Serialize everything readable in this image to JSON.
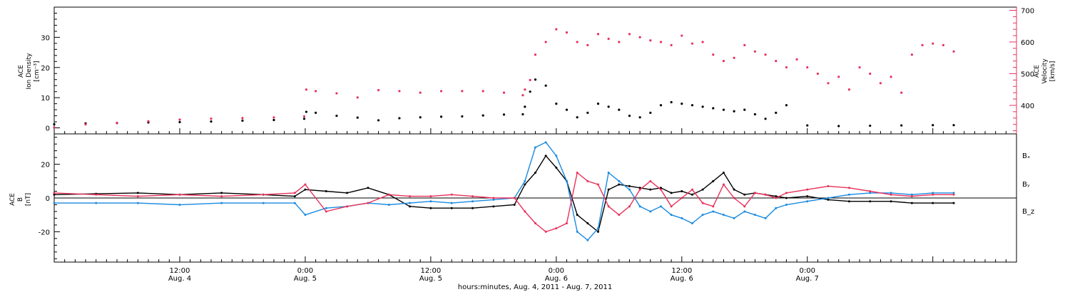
{
  "chart_data": [
    {
      "panel": "top",
      "type": "scatter",
      "ylabel_lines": [
        "ACE",
        "Ion Density",
        "[cm⁻³]"
      ],
      "y2label_lines": [
        "ACE",
        "Velocity",
        "[km/s]"
      ],
      "yticks": [
        "0",
        "10",
        "20",
        "30"
      ],
      "y2ticks": [
        "400",
        "500",
        "600",
        "700"
      ],
      "ylim": [
        -2,
        40
      ],
      "y2lim": [
        310,
        710
      ],
      "colors": {
        "density": "#000000",
        "velocity": "#e8305a"
      },
      "series": [
        {
          "axis": "left",
          "x": [
            0,
            3,
            6,
            9,
            12,
            15,
            18,
            21,
            23.9,
            24.1,
            25,
            27,
            29,
            31,
            33,
            35,
            37,
            39,
            41,
            43,
            44.8,
            45,
            45.5,
            46,
            47,
            48,
            49,
            50,
            51,
            52,
            53,
            54,
            55,
            56,
            57,
            58,
            59,
            60,
            61,
            62,
            63,
            64,
            65,
            66,
            67,
            68,
            69,
            70,
            72,
            75,
            78,
            81,
            84,
            86
          ],
          "values": [
            1.2,
            1.5,
            1.6,
            1.8,
            1.9,
            2.1,
            2.4,
            2.6,
            3,
            5.3,
            5,
            4,
            3.4,
            2.5,
            3.2,
            3.5,
            3.7,
            3.8,
            4.1,
            4.4,
            4.5,
            7,
            12,
            16,
            14,
            8,
            6,
            3.5,
            5,
            8,
            7,
            6,
            4,
            3.5,
            5,
            7.5,
            8.5,
            8,
            7.5,
            7,
            6.5,
            6,
            5.5,
            6,
            4.5,
            3,
            5,
            7.5,
            0.8,
            0.6,
            0.7,
            0.8,
            0.9,
            0.9
          ]
        },
        {
          "axis": "right",
          "x": [
            0,
            3,
            6,
            9,
            12,
            15,
            18,
            21,
            23.9,
            24.1,
            25,
            27,
            29,
            31,
            33,
            35,
            37,
            39,
            41,
            43,
            44.8,
            45,
            45.5,
            46,
            47,
            48,
            49,
            50,
            51,
            52,
            53,
            54,
            55,
            56,
            57,
            58,
            59,
            60,
            61,
            62,
            63,
            64,
            65,
            66,
            67,
            68,
            69,
            70,
            71,
            72,
            73,
            74,
            75,
            76,
            77,
            78,
            79,
            80,
            81,
            82,
            83,
            84,
            85,
            86
          ],
          "values": [
            330,
            340,
            345,
            350,
            355,
            358,
            360,
            362,
            365,
            450,
            445,
            438,
            425,
            448,
            445,
            440,
            445,
            445,
            445,
            440,
            432,
            450,
            480,
            560,
            600,
            640,
            630,
            600,
            590,
            625,
            610,
            600,
            625,
            615,
            605,
            600,
            590,
            620,
            595,
            600,
            560,
            540,
            550,
            590,
            570,
            560,
            540,
            520,
            545,
            520,
            500,
            470,
            490,
            450,
            520,
            500,
            470,
            490,
            440,
            560,
            590,
            595,
            590,
            570
          ]
        }
      ]
    },
    {
      "panel": "bottom",
      "type": "line",
      "ylabel_lines": [
        "ACE",
        "B",
        "[nT]"
      ],
      "yticks": [
        "-20",
        "0",
        "20"
      ],
      "ylim": [
        -38,
        38
      ],
      "xlim": [
        0,
        92
      ],
      "legend_position": "right",
      "series": [
        {
          "name": "Bₓ",
          "color": "#000000",
          "x": [
            0,
            4,
            8,
            12,
            16,
            20,
            23,
            24,
            26,
            28,
            30,
            32,
            34,
            36,
            38,
            40,
            42,
            44,
            45,
            46,
            47,
            48,
            49,
            50,
            51,
            52,
            53,
            54,
            55,
            56,
            57,
            58,
            59,
            60,
            61,
            62,
            63,
            64,
            65,
            66,
            67,
            68,
            69,
            70,
            72,
            74,
            76,
            78,
            80,
            82,
            84,
            86
          ],
          "values": [
            2,
            2.5,
            3,
            2,
            3,
            2,
            1,
            5,
            4,
            3,
            6,
            2,
            -5,
            -6,
            -6,
            -6,
            -5,
            -4,
            8,
            15,
            25,
            18,
            10,
            -10,
            -15,
            -20,
            5,
            8,
            7,
            6,
            5,
            6,
            3,
            4,
            2,
            5,
            10,
            15,
            5,
            2,
            3,
            2,
            1,
            0,
            1,
            -1,
            -2,
            -2,
            -2,
            -3,
            -3,
            -3
          ]
        },
        {
          "name": "Bᵧ",
          "color": "#1a8ae0",
          "x": [
            0,
            4,
            8,
            12,
            16,
            20,
            23,
            24,
            26,
            28,
            30,
            32,
            34,
            36,
            38,
            40,
            42,
            44,
            45,
            46,
            47,
            48,
            49,
            50,
            51,
            52,
            53,
            54,
            55,
            56,
            57,
            58,
            59,
            60,
            61,
            62,
            63,
            64,
            65,
            66,
            67,
            68,
            69,
            70,
            72,
            74,
            76,
            78,
            80,
            82,
            84,
            86
          ],
          "values": [
            -3,
            -3,
            -3,
            -4,
            -3,
            -3,
            -3,
            -10,
            -6,
            -5,
            -3,
            -4,
            -3,
            -2,
            -3,
            -2,
            -1,
            0,
            10,
            30,
            33,
            25,
            10,
            -20,
            -25,
            -18,
            15,
            10,
            5,
            -5,
            -8,
            -5,
            -10,
            -12,
            -15,
            -10,
            -8,
            -10,
            -12,
            -8,
            -10,
            -12,
            -6,
            -4,
            -2,
            0,
            2,
            3,
            3,
            2,
            3,
            3
          ]
        },
        {
          "name": "B_z",
          "color": "#e8305a",
          "x": [
            0,
            4,
            8,
            12,
            16,
            20,
            23,
            24,
            26,
            28,
            30,
            32,
            34,
            36,
            38,
            40,
            42,
            44,
            45,
            46,
            47,
            48,
            49,
            50,
            51,
            52,
            53,
            54,
            55,
            56,
            57,
            58,
            59,
            60,
            61,
            62,
            63,
            64,
            65,
            66,
            67,
            68,
            69,
            70,
            72,
            74,
            76,
            78,
            80,
            82,
            84,
            86
          ],
          "values": [
            3,
            2,
            1,
            2,
            1,
            2,
            3,
            8,
            -8,
            -5,
            -3,
            2,
            1,
            1,
            2,
            1,
            0,
            0,
            -8,
            -15,
            -20,
            -18,
            -15,
            15,
            10,
            8,
            -5,
            -10,
            -5,
            5,
            10,
            5,
            -5,
            0,
            5,
            -3,
            -5,
            8,
            0,
            -5,
            3,
            2,
            0,
            3,
            5,
            7,
            6,
            4,
            2,
            1,
            2,
            2
          ]
        }
      ]
    }
  ],
  "x_axis": {
    "title": "hours:minutes, Aug.  4, 2011 - Aug.  7, 2011",
    "xlim": [
      0,
      92
    ],
    "ticks": [
      {
        "x": 12,
        "time": "12:00",
        "day": "Aug. 4"
      },
      {
        "x": 24,
        "time": "0:00",
        "day": "Aug. 5"
      },
      {
        "x": 36,
        "time": "12:00",
        "day": "Aug. 5"
      },
      {
        "x": 48,
        "time": "0:00",
        "day": "Aug. 6"
      },
      {
        "x": 60,
        "time": "12:00",
        "day": "Aug. 6"
      },
      {
        "x": 72,
        "time": "0:00",
        "day": "Aug. 7"
      }
    ]
  }
}
